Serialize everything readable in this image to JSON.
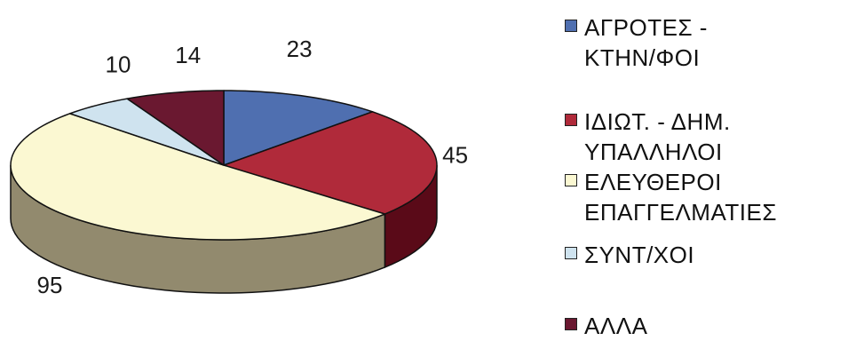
{
  "chart_data": {
    "type": "pie",
    "title": "",
    "three_d": true,
    "legend_position": "right",
    "slices": [
      {
        "label": "ΑΓΡΟΤΕΣ -\nΚΤΗΝ/ΦΟΙ",
        "value": 23,
        "color": "#4f6fb0",
        "side_color": "#2f4a80"
      },
      {
        "label": "ΙΔΙΩΤ. - ΔΗΜ.\nΥΠΑΛΛΗΛΟΙ",
        "value": 45,
        "color": "#b02a3a",
        "side_color": "#5a0a18"
      },
      {
        "label": "ΕΛΕΥΘΕΡΟΙ\nΕΠΑΓΓΕΛΜΑΤΙΕΣ",
        "value": 95,
        "color": "#fbf8d2",
        "side_color": "#928a6e"
      },
      {
        "label": "ΣΥΝΤ/ΧΟΙ",
        "value": 10,
        "color": "#cfe3ef",
        "side_color": "#8aa3b3"
      },
      {
        "label": "ΑΛΛΑ",
        "value": 14,
        "color": "#6a1830",
        "side_color": "#3e0d1b"
      }
    ]
  }
}
